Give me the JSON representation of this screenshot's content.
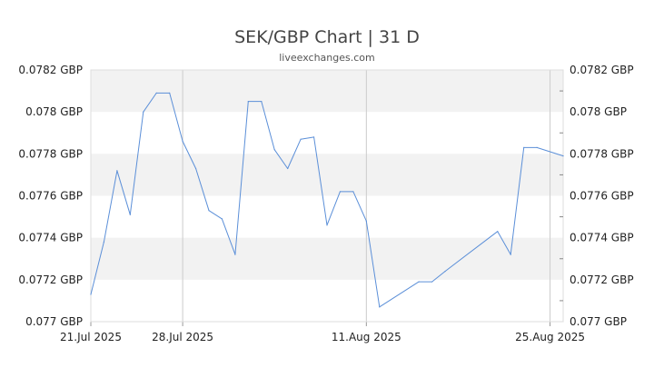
{
  "chart_data": {
    "type": "line",
    "title": "SEK/GBP Chart | 31 D",
    "subtitle": "liveexchanges.com",
    "unit": "GBP",
    "ylim": [
      0.077,
      0.0782
    ],
    "y_ticks": [
      "0.0782 GBP",
      "0.078 GBP",
      "0.0778 GBP",
      "0.0776 GBP",
      "0.0774 GBP",
      "0.0772 GBP",
      "0.077 GBP"
    ],
    "y_tick_values": [
      0.0782,
      0.078,
      0.0778,
      0.0776,
      0.0774,
      0.0772,
      0.077
    ],
    "x_ticks": [
      {
        "label": "21.Jul 2025",
        "day": 0
      },
      {
        "label": "28.Jul 2025",
        "day": 7
      },
      {
        "label": "11.Aug 2025",
        "day": 21
      },
      {
        "label": "25.Aug 2025",
        "day": 35
      }
    ],
    "x_range_days": [
      0,
      36
    ],
    "line_color": "#5b8fd8",
    "band_color": "#f2f2f2",
    "series": [
      {
        "points": [
          [
            0,
            0.07713
          ],
          [
            1,
            0.07738
          ],
          [
            2,
            0.07772
          ],
          [
            3,
            0.07751
          ],
          [
            4,
            0.078
          ],
          [
            5,
            0.07809
          ],
          [
            6,
            0.07809
          ],
          [
            7,
            0.07786
          ],
          [
            8,
            0.07773
          ],
          [
            9,
            0.07753
          ],
          [
            10,
            0.07749
          ],
          [
            11,
            0.07732
          ],
          [
            12,
            0.07805
          ],
          [
            13,
            0.07805
          ],
          [
            14,
            0.07782
          ],
          [
            15,
            0.07773
          ],
          [
            16,
            0.07787
          ],
          [
            17,
            0.07788
          ],
          [
            18,
            0.07746
          ],
          [
            19,
            0.07762
          ],
          [
            20,
            0.07762
          ],
          [
            21,
            0.07748
          ],
          [
            22,
            0.07707
          ],
          [
            25,
            0.07719
          ],
          [
            26,
            0.07719
          ],
          [
            27,
            0.07724
          ],
          [
            31,
            0.07743
          ],
          [
            32,
            0.07732
          ],
          [
            33,
            0.07783
          ],
          [
            34,
            0.07783
          ],
          [
            36,
            0.07779
          ]
        ]
      }
    ]
  }
}
